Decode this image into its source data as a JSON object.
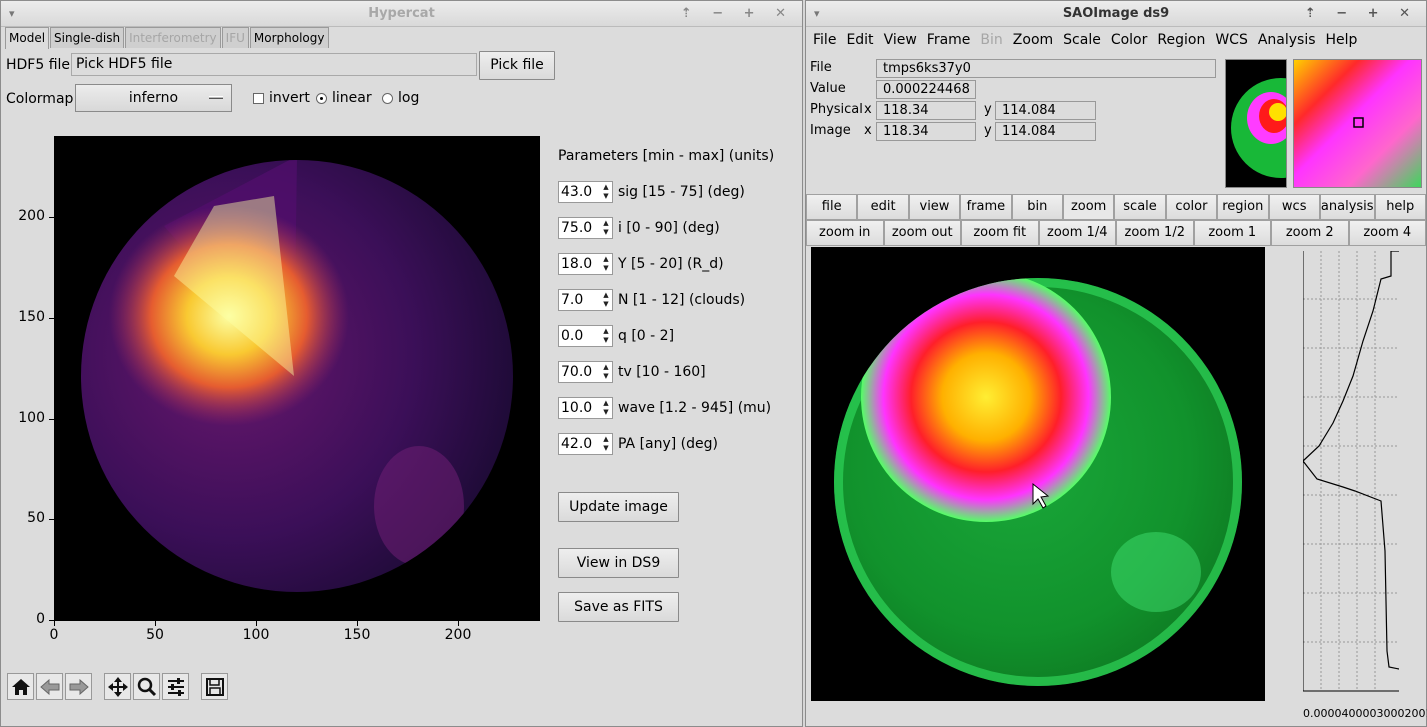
{
  "hypercat": {
    "title": "Hypercat",
    "tabs": [
      {
        "label": "Model",
        "state": "active"
      },
      {
        "label": "Single-dish",
        "state": "enabled"
      },
      {
        "label": "Interferometry",
        "state": "disabled"
      },
      {
        "label": "IFU",
        "state": "disabled"
      },
      {
        "label": "Morphology",
        "state": "enabled"
      }
    ],
    "hdf5_label": "HDF5 file",
    "hdf5_value": "Pick HDF5 file",
    "pick_file_button": "Pick file",
    "colormap_label": "Colormap",
    "colormap_value": "inferno",
    "invert_label": "invert",
    "linear_label": "linear",
    "log_label": "log",
    "scale_selected": "linear",
    "params_heading": "Parameters [min - max] (units)",
    "params": [
      {
        "value": "43.0",
        "label": "sig [15 - 75] (deg)"
      },
      {
        "value": "75.0",
        "label": "i [0 - 90] (deg)"
      },
      {
        "value": "18.0",
        "label": "Y [5 - 20] (R_d)"
      },
      {
        "value": "7.0",
        "label": "N [1 - 12] (clouds)"
      },
      {
        "value": "0.0",
        "label": "q [0 - 2]"
      },
      {
        "value": "70.0",
        "label": "tv [10 - 160]"
      },
      {
        "value": "10.0",
        "label": "wave [1.2 - 945] (mu)"
      },
      {
        "value": "42.0",
        "label": "PA [any] (deg)"
      }
    ],
    "update_button": "Update image",
    "view_ds9_button": "View in DS9",
    "save_fits_button": "Save as FITS",
    "y_ticks": [
      "200",
      "150",
      "100",
      "50",
      "0"
    ],
    "x_ticks": [
      "0",
      "50",
      "100",
      "150",
      "200"
    ],
    "toolbar": [
      "home-icon",
      "back-arrow-icon",
      "forward-arrow-icon",
      "pan-icon",
      "zoom-icon",
      "configure-icon",
      "save-icon"
    ]
  },
  "ds9": {
    "title": "SAOImage ds9",
    "menu": [
      {
        "label": "File",
        "disabled": false
      },
      {
        "label": "Edit",
        "disabled": false
      },
      {
        "label": "View",
        "disabled": false
      },
      {
        "label": "Frame",
        "disabled": false
      },
      {
        "label": "Bin",
        "disabled": true
      },
      {
        "label": "Zoom",
        "disabled": false
      },
      {
        "label": "Scale",
        "disabled": false
      },
      {
        "label": "Color",
        "disabled": false
      },
      {
        "label": "Region",
        "disabled": false
      },
      {
        "label": "WCS",
        "disabled": false
      },
      {
        "label": "Analysis",
        "disabled": false
      },
      {
        "label": "Help",
        "disabled": false
      }
    ],
    "file_label": "File",
    "file_value": "tmps6ks37y0",
    "value_label": "Value",
    "value_value": "0.000224468",
    "physical_label": "Physical",
    "image_label": "Image",
    "x_label": "x",
    "y_label": "y",
    "physical_x": "118.34",
    "physical_y": "114.084",
    "image_x": "118.34",
    "image_y": "114.084",
    "buttons_row1": [
      "file",
      "edit",
      "view",
      "frame",
      "bin",
      "zoom",
      "scale",
      "color",
      "region",
      "wcs",
      "analysis",
      "help"
    ],
    "buttons_row1_selected": "zoom",
    "buttons_row2": [
      "zoom in",
      "zoom out",
      "zoom fit",
      "zoom 1/4",
      "zoom 1/2",
      "zoom 1",
      "zoom 2",
      "zoom 4"
    ],
    "graph_axis_label": "0.000040000300020010"
  }
}
